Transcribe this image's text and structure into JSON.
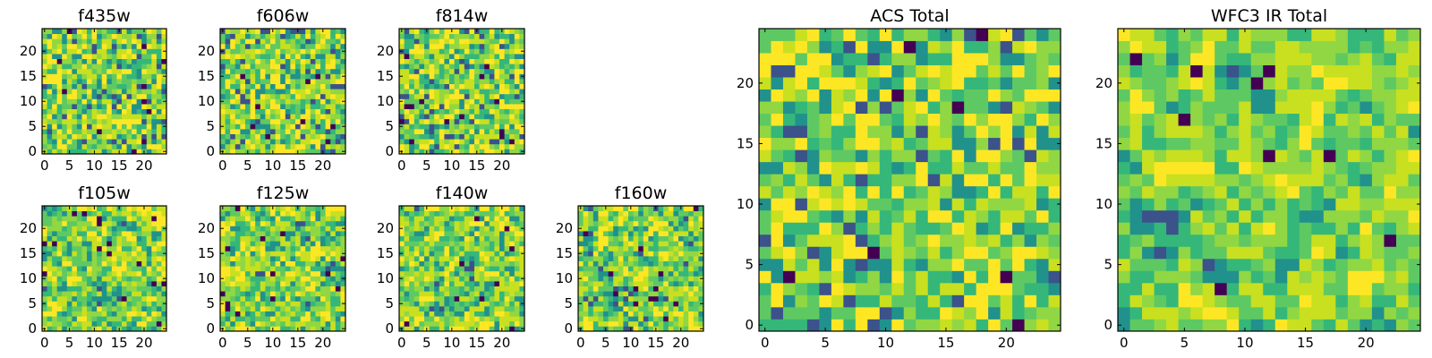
{
  "chart_data": [
    {
      "type": "heatmap",
      "title": "f435w",
      "xticks": [
        0,
        5,
        10,
        15,
        20
      ],
      "yticks": [
        0,
        5,
        10,
        15,
        20
      ],
      "xlim": [
        -0.5,
        24.5
      ],
      "ylim": [
        -0.5,
        24.5
      ],
      "grid": 25,
      "colormap": "viridis"
    },
    {
      "type": "heatmap",
      "title": "f606w",
      "xticks": [
        0,
        5,
        10,
        15,
        20
      ],
      "yticks": [
        0,
        5,
        10,
        15,
        20
      ],
      "xlim": [
        -0.5,
        24.5
      ],
      "ylim": [
        -0.5,
        24.5
      ],
      "grid": 25,
      "colormap": "viridis"
    },
    {
      "type": "heatmap",
      "title": "f814w",
      "xticks": [
        0,
        5,
        10,
        15,
        20
      ],
      "yticks": [
        0,
        5,
        10,
        15,
        20
      ],
      "xlim": [
        -0.5,
        24.5
      ],
      "ylim": [
        -0.5,
        24.5
      ],
      "grid": 25,
      "colormap": "viridis"
    },
    {
      "type": "heatmap",
      "title": "f105w",
      "xticks": [
        0,
        5,
        10,
        15,
        20
      ],
      "yticks": [
        0,
        5,
        10,
        15,
        20
      ],
      "xlim": [
        -0.5,
        24.5
      ],
      "ylim": [
        -0.5,
        24.5
      ],
      "grid": 25,
      "colormap": "viridis"
    },
    {
      "type": "heatmap",
      "title": "f125w",
      "xticks": [
        0,
        5,
        10,
        15,
        20
      ],
      "yticks": [
        0,
        5,
        10,
        15,
        20
      ],
      "xlim": [
        -0.5,
        24.5
      ],
      "ylim": [
        -0.5,
        24.5
      ],
      "grid": 25,
      "colormap": "viridis"
    },
    {
      "type": "heatmap",
      "title": "f140w",
      "xticks": [
        0,
        5,
        10,
        15,
        20
      ],
      "yticks": [
        0,
        5,
        10,
        15,
        20
      ],
      "xlim": [
        -0.5,
        24.5
      ],
      "ylim": [
        -0.5,
        24.5
      ],
      "grid": 25,
      "colormap": "viridis"
    },
    {
      "type": "heatmap",
      "title": "f160w",
      "xticks": [
        0,
        5,
        10,
        15,
        20
      ],
      "yticks": [
        0,
        5,
        10,
        15,
        20
      ],
      "xlim": [
        -0.5,
        24.5
      ],
      "ylim": [
        -0.5,
        24.5
      ],
      "grid": 25,
      "colormap": "viridis"
    },
    {
      "type": "heatmap",
      "title": "ACS Total",
      "xticks": [
        0,
        5,
        10,
        15,
        20
      ],
      "yticks": [
        0,
        5,
        10,
        15,
        20
      ],
      "xlim": [
        -0.5,
        24.5
      ],
      "ylim": [
        -0.5,
        24.5
      ],
      "grid": 25,
      "colormap": "viridis"
    },
    {
      "type": "heatmap",
      "title": "WFC3 IR Total",
      "xticks": [
        0,
        5,
        10,
        15,
        20
      ],
      "yticks": [
        0,
        5,
        10,
        15,
        20
      ],
      "xlim": [
        -0.5,
        24.5
      ],
      "ylim": [
        -0.5,
        24.5
      ],
      "grid": 25,
      "colormap": "viridis"
    }
  ],
  "colors": {
    "viridis": [
      "#440154",
      "#3b528b",
      "#21918c",
      "#35b779",
      "#5ec962",
      "#90d743",
      "#c8e020",
      "#fde725"
    ]
  }
}
